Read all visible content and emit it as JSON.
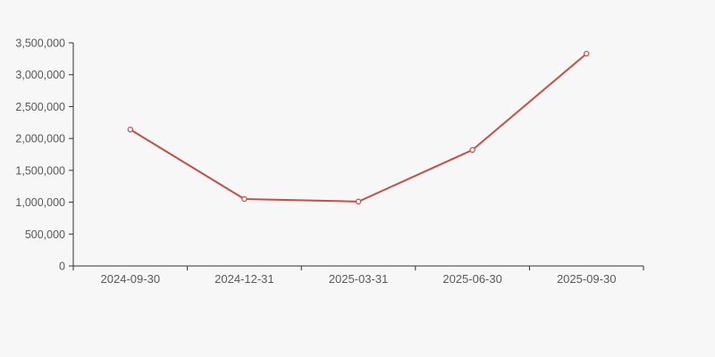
{
  "page": {
    "background_color": "#f7f7f7"
  },
  "chart_data": {
    "type": "line",
    "title": "",
    "xlabel": "",
    "ylabel": "",
    "categories": [
      "2024-09-30",
      "2024-12-31",
      "2025-03-31",
      "2025-06-30",
      "2025-09-30"
    ],
    "series": [
      {
        "name": "value",
        "values": [
          2140000,
          1050000,
          1010000,
          1820000,
          3330000
        ]
      }
    ],
    "ylim": [
      0,
      3500000
    ],
    "y_ticks": [
      0,
      500000,
      1000000,
      1500000,
      2000000,
      2500000,
      3000000,
      3500000
    ],
    "y_tick_labels": [
      "0",
      "500,000",
      "1,000,000",
      "1,500,000",
      "2,000,000",
      "2,500,000",
      "3,000,000",
      "3,500,000"
    ],
    "grid": false,
    "legend_position": "none",
    "line_color": "#c34f48",
    "marker_style": "open-circle",
    "marker_fill_color": "#f9f6f6",
    "axis_color": "#333333",
    "tick_label_color": "#595959"
  }
}
